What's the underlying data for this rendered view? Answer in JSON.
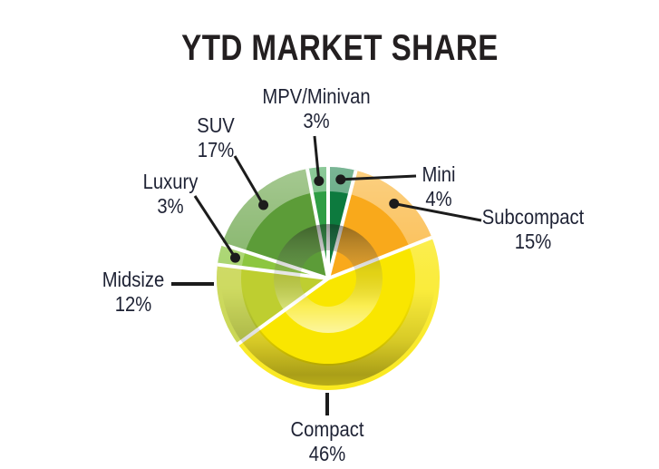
{
  "title": "YTD MARKET SHARE",
  "chart_data": {
    "type": "pie",
    "title": "YTD MARKET SHARE",
    "direction": "clockwise",
    "start_angle_deg_from_top": 0,
    "units": "percent",
    "order_from_top_clockwise": [
      "Mini",
      "Subcompact",
      "Compact",
      "Midsize",
      "Luxury",
      "SUV",
      "MPV/Minivan"
    ],
    "segments": [
      {
        "label": "Mini",
        "value": 4,
        "pct_label": "4%",
        "color": "#0d7a3e"
      },
      {
        "label": "Subcompact",
        "value": 15,
        "pct_label": "15%",
        "color": "#f9a91b"
      },
      {
        "label": "Compact",
        "value": 46,
        "pct_label": "46%",
        "color": "#f9e600"
      },
      {
        "label": "Midsize",
        "value": 12,
        "pct_label": "12%",
        "color": "#bece30"
      },
      {
        "label": "Luxury",
        "value": 3,
        "pct_label": "3%",
        "color": "#8cc63f"
      },
      {
        "label": "SUV",
        "value": 17,
        "pct_label": "17%",
        "color": "#5c9c38"
      },
      {
        "label": "MPV/Minivan",
        "value": 3,
        "pct_label": "3%",
        "color": "#2f9e45"
      }
    ]
  },
  "ui": {
    "background_color": "#ffffff",
    "title_color": "#231f20",
    "label_color": "#1e2234",
    "leader_line_color": "#1c1c1c",
    "slice_gap_color": "#ffffff"
  }
}
